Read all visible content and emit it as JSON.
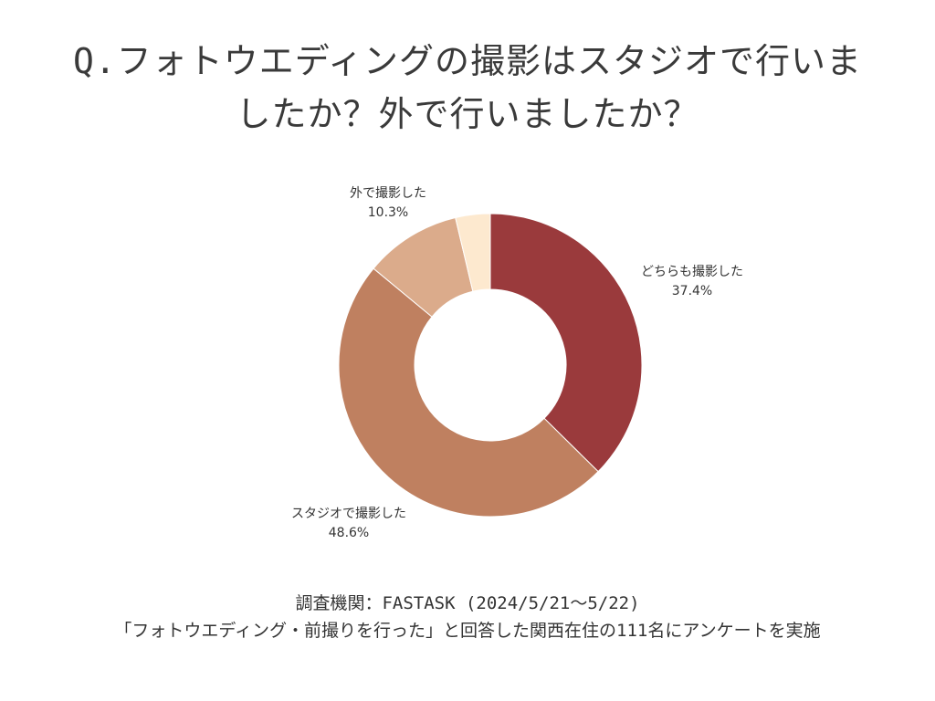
{
  "title_lines": [
    "Q.フォトウエディングの撮影はスタジオで行いま",
    "したか？外で行いましたか？"
  ],
  "footer_lines": [
    "調査機関：FASTASK (2024/5/21〜5/22)",
    "「フォトウエディング・前撮りを行った」と回答した関西在住の111名にアンケートを実施"
  ],
  "chart_data": {
    "type": "pie",
    "donut": true,
    "title": "",
    "categories": [
      "どちらも撮影した",
      "スタジオで撮影した",
      "外で撮影した",
      ""
    ],
    "values": [
      37.4,
      48.6,
      10.3,
      3.7
    ],
    "value_labels": [
      "37.4%",
      "48.6%",
      "10.3%",
      ""
    ],
    "colors": [
      "#9a3a3c",
      "#bf8060",
      "#dbab8b",
      "#fde9cf"
    ],
    "start_angle_deg": 0,
    "direction": "clockwise",
    "legend": "none"
  }
}
